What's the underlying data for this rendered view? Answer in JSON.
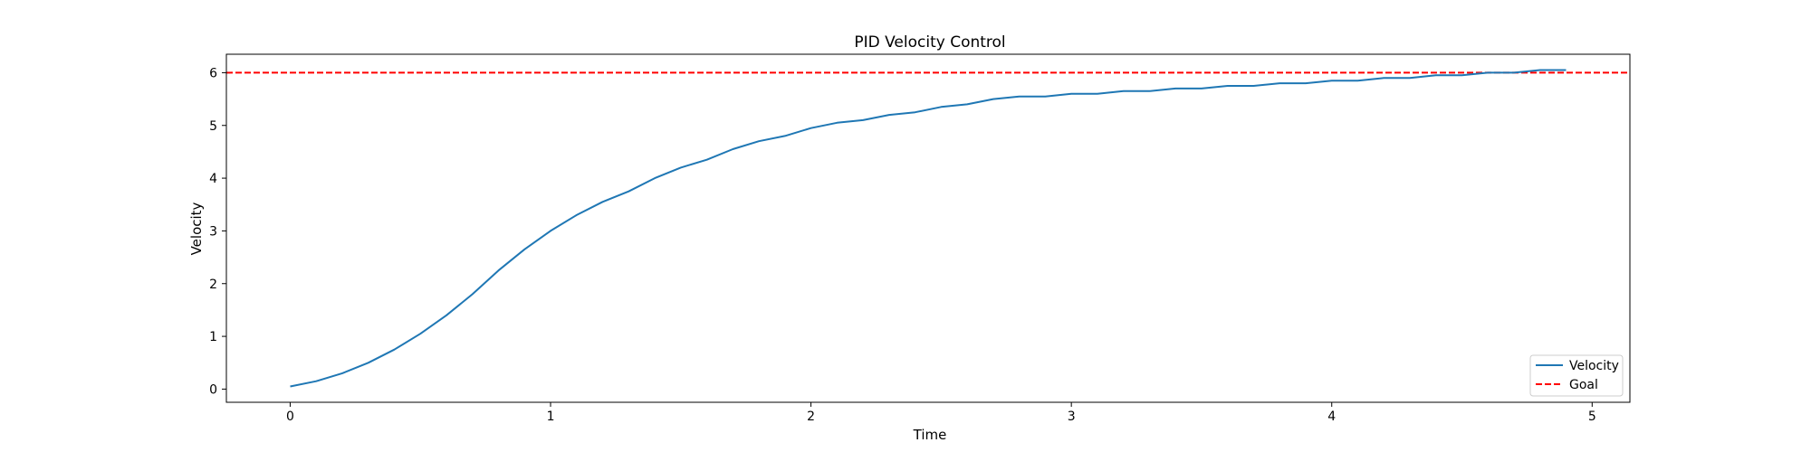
{
  "chart_data": {
    "type": "line",
    "title": "PID Velocity Control",
    "xlabel": "Time",
    "ylabel": "Velocity",
    "xlim": [
      -0.245,
      5.145
    ],
    "ylim": [
      -0.25,
      6.35
    ],
    "xticks": [
      0,
      1,
      2,
      3,
      4,
      5
    ],
    "yticks": [
      0,
      1,
      2,
      3,
      4,
      5,
      6
    ],
    "grid": false,
    "legend_position": "lower-right",
    "series": [
      {
        "name": "Velocity",
        "color": "#1f77b4",
        "style": "solid",
        "x": [
          0.0,
          0.1,
          0.2,
          0.3,
          0.4,
          0.5,
          0.6,
          0.7,
          0.8,
          0.9,
          1.0,
          1.1,
          1.2,
          1.3,
          1.4,
          1.5,
          1.6,
          1.7,
          1.8,
          1.9,
          2.0,
          2.1,
          2.2,
          2.3,
          2.4,
          2.5,
          2.6,
          2.7,
          2.8,
          2.9,
          3.0,
          3.1,
          3.2,
          3.3,
          3.4,
          3.5,
          3.6,
          3.7,
          3.8,
          3.9,
          4.0,
          4.1,
          4.2,
          4.3,
          4.4,
          4.5,
          4.6,
          4.7,
          4.8,
          4.9
        ],
        "y": [
          0.05,
          0.15,
          0.3,
          0.5,
          0.75,
          1.05,
          1.4,
          1.8,
          2.25,
          2.65,
          3.0,
          3.3,
          3.55,
          3.75,
          4.0,
          4.2,
          4.35,
          4.55,
          4.7,
          4.8,
          4.95,
          5.05,
          5.1,
          5.2,
          5.25,
          5.35,
          5.4,
          5.5,
          5.55,
          5.55,
          5.6,
          5.6,
          5.65,
          5.65,
          5.7,
          5.7,
          5.75,
          5.75,
          5.8,
          5.8,
          5.85,
          5.85,
          5.9,
          5.9,
          5.95,
          5.95,
          6.0,
          6.0,
          6.05,
          6.05
        ]
      },
      {
        "name": "Goal",
        "color": "#ff0000",
        "style": "dashed",
        "hline": 6
      }
    ]
  }
}
